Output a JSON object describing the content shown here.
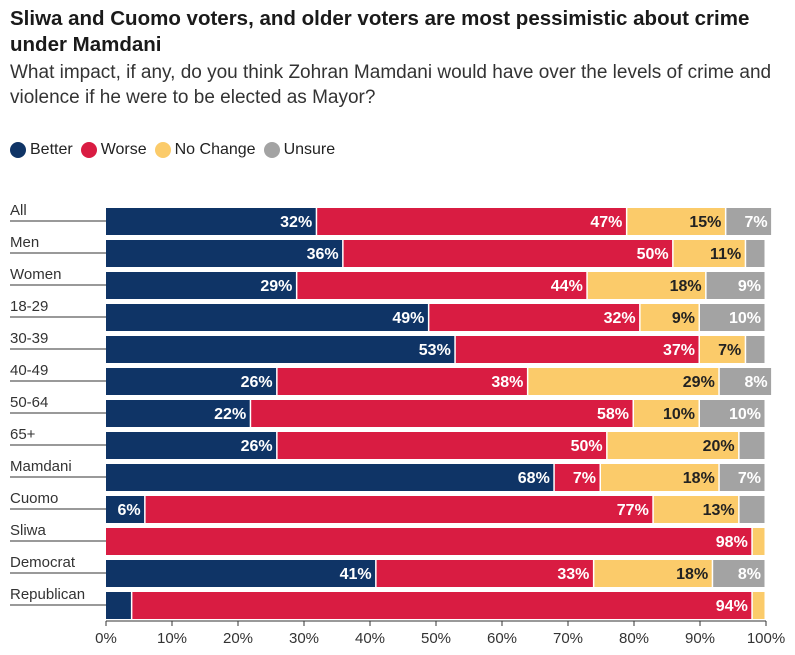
{
  "chart_data": {
    "type": "bar",
    "stacked": true,
    "orientation": "horizontal",
    "title": "Sliwa and Cuomo voters, and older voters are most pessimistic about crime under Mamdani",
    "subtitle": "What impact, if any, do you think Zohran Mamdani would have over the levels of crime and violence if he were to be elected as Mayor?",
    "categories": [
      "All",
      "Men",
      "Women",
      "18-29",
      "30-39",
      "40-49",
      "50-64",
      "65+",
      "Mamdani",
      "Cuomo",
      "Sliwa",
      "Democrat",
      "Republican"
    ],
    "series": [
      {
        "name": "Better",
        "color": "#0f3466",
        "values": [
          32,
          36,
          29,
          49,
          53,
          26,
          22,
          26,
          68,
          6,
          0,
          41,
          4
        ]
      },
      {
        "name": "Worse",
        "color": "#d91c42",
        "values": [
          47,
          50,
          44,
          32,
          37,
          38,
          58,
          50,
          7,
          77,
          98,
          33,
          94
        ]
      },
      {
        "name": "No Change",
        "color": "#fbcb6a",
        "values": [
          15,
          11,
          18,
          9,
          7,
          29,
          10,
          20,
          18,
          13,
          2,
          18,
          2
        ]
      },
      {
        "name": "Unsure",
        "color": "#a3a3a3",
        "values": [
          7,
          3,
          9,
          10,
          3,
          8,
          10,
          4,
          7,
          4,
          0,
          8,
          0
        ]
      }
    ],
    "xlim": [
      0,
      100
    ],
    "xticks": [
      "0%",
      "10%",
      "20%",
      "30%",
      "40%",
      "50%",
      "60%",
      "70%",
      "80%",
      "90%",
      "100%"
    ],
    "legend_position": "top-left"
  }
}
